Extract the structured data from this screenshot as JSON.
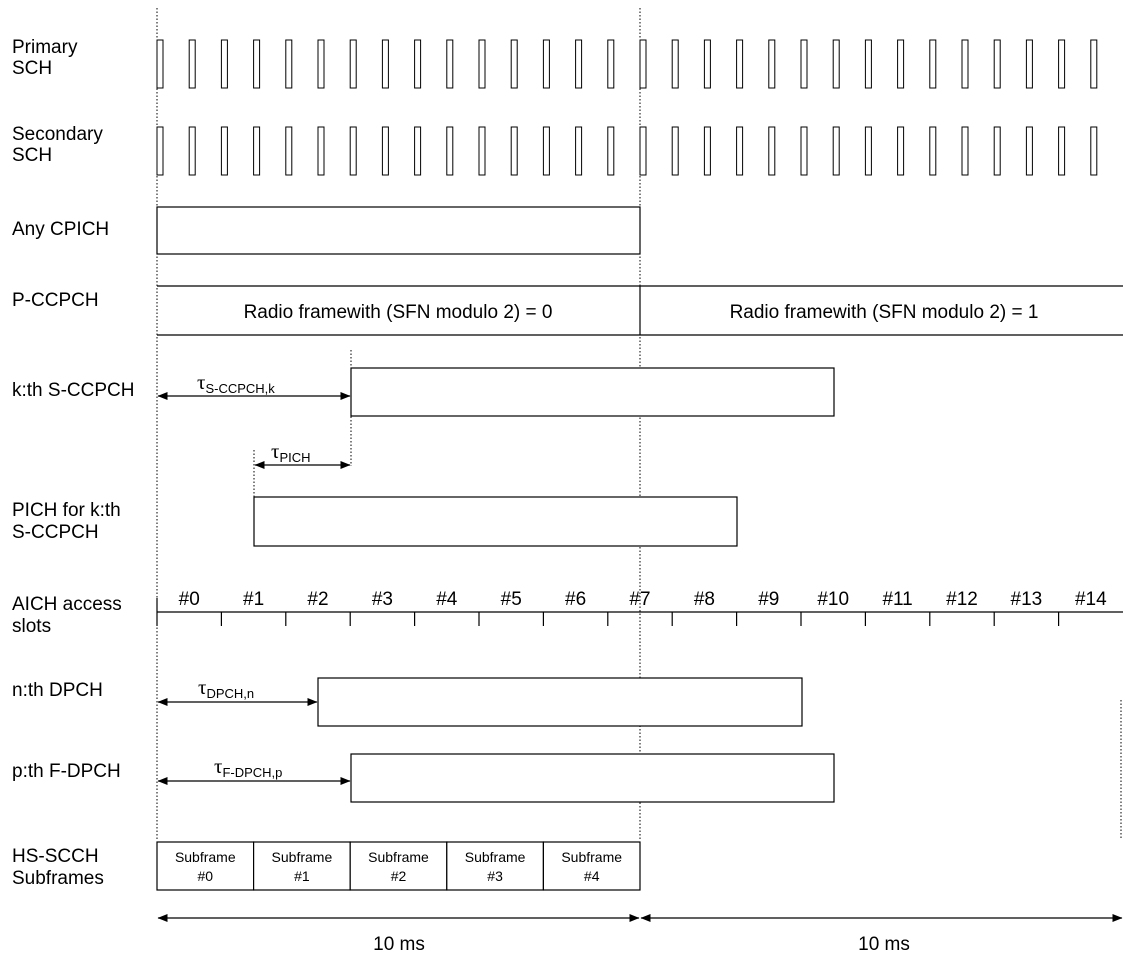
{
  "rows": {
    "primary_sch": [
      "Primary",
      "SCH"
    ],
    "secondary_sch": [
      "Secondary",
      "SCH"
    ],
    "cpich": "Any CPICH",
    "pccpch": "P-CCPCH",
    "sccpch": "k:th S-CCPCH",
    "pich": [
      "PICH for k:th",
      "S-CCPCH"
    ],
    "aich": [
      "AICH access",
      "slots"
    ],
    "dpch": "n:th DPCH",
    "fdpch": "p:th F-DPCH",
    "hsscch": [
      "HS-SCCH",
      "Subframes"
    ]
  },
  "pccpch_frames": [
    "Radio framewith (SFN modulo 2) = 0",
    "Radio framewith (SFN modulo 2) = 1"
  ],
  "tau": {
    "symbol": "τ",
    "sccpch": "S-CCPCH,k",
    "pich": "PICH",
    "dpch": "DPCH,n",
    "fdpch": "F-DPCH,p"
  },
  "aich_slots": [
    "#0",
    "#1",
    "#2",
    "#3",
    "#4",
    "#5",
    "#6",
    "#7",
    "#8",
    "#9",
    "#10",
    "#11",
    "#12",
    "#13",
    "#14"
  ],
  "subframes": [
    [
      "Subframe",
      "#0"
    ],
    [
      "Subframe",
      "#1"
    ],
    [
      "Subframe",
      "#2"
    ],
    [
      "Subframe",
      "#3"
    ],
    [
      "Subframe",
      "#4"
    ]
  ],
  "duration": [
    "10 ms",
    "10 ms"
  ]
}
